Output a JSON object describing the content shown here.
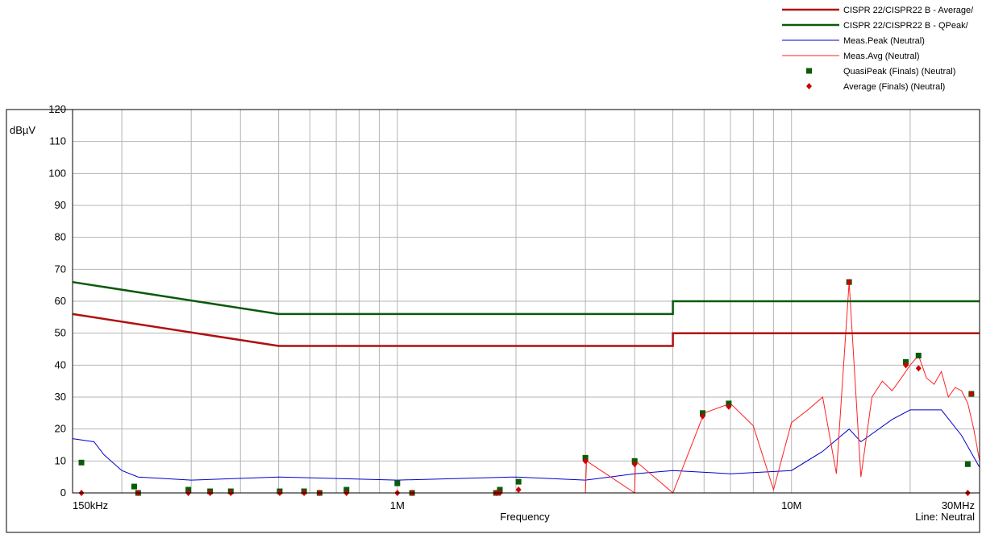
{
  "chart_data": {
    "type": "line",
    "title": "",
    "xlabel": "Frequency",
    "ylabel": "dBµV",
    "x_scale": "log",
    "x_unit": "Hz",
    "xlim": [
      150000,
      30000000
    ],
    "ylim": [
      0,
      120
    ],
    "y_ticks": [
      0,
      10,
      20,
      30,
      40,
      50,
      60,
      70,
      80,
      90,
      100,
      110,
      120
    ],
    "x_tick_labels": [
      {
        "x": 150000,
        "label": "150kHz"
      },
      {
        "x": 1000000,
        "label": "1M"
      },
      {
        "x": 10000000,
        "label": "10M"
      },
      {
        "x": 30000000,
        "label": "30MHz"
      }
    ],
    "footer_note": "Line: Neutral",
    "grid": true,
    "legend_position": "top-right",
    "series": [
      {
        "name": "CISPR 22/CISPR22 B - Average/",
        "style": "thick-line",
        "color": "#b01010",
        "x": [
          150000,
          500000,
          500000,
          5000000,
          5000000,
          30000000
        ],
        "y": [
          56,
          46,
          46,
          46,
          50,
          50
        ]
      },
      {
        "name": "CISPR 22/CISPR22 B - QPeak/",
        "style": "thick-line",
        "color": "#0a5a0a",
        "x": [
          150000,
          500000,
          500000,
          5000000,
          5000000,
          30000000
        ],
        "y": [
          66,
          56,
          56,
          56,
          60,
          60
        ]
      },
      {
        "name": "Meas.Peak (Neutral)",
        "style": "thin-line",
        "color": "#0000cc",
        "x": [
          150000,
          170000,
          180000,
          200000,
          220000,
          300000,
          500000,
          1000000,
          2000000,
          3000000,
          4000000,
          5000000,
          7000000,
          10000000,
          12000000,
          14000000,
          15000000,
          18000000,
          20000000,
          24000000,
          27000000,
          30000000
        ],
        "y": [
          17,
          16,
          12,
          7,
          5,
          4,
          5,
          4,
          5,
          4,
          6,
          7,
          6,
          7,
          13,
          20,
          16,
          23,
          26,
          26,
          18,
          8
        ]
      },
      {
        "name": "Meas.Avg (Neutral)",
        "style": "thin-line",
        "color": "#ff2020",
        "x": [
          150000,
          3000000,
          3020000,
          4000000,
          4020000,
          5000000,
          6000000,
          7000000,
          8000000,
          9000000,
          10000000,
          11000000,
          12000000,
          13000000,
          14000000,
          15000000,
          16000000,
          17000000,
          18000000,
          19000000,
          20000000,
          21000000,
          22000000,
          23000000,
          24000000,
          25000000,
          26000000,
          27000000,
          28000000,
          29000000,
          30000000
        ],
        "y": [
          0,
          0,
          10,
          0,
          10,
          0,
          25,
          28,
          21,
          1,
          22,
          26,
          30,
          6,
          66,
          5,
          30,
          35,
          32,
          36,
          40,
          43,
          36,
          34,
          38,
          30,
          33,
          32,
          28,
          20,
          10
        ]
      },
      {
        "name": "QuasiPeak (Finals) (Neutral)",
        "style": "square-markers",
        "color": "#0a5a0a",
        "x": [
          158000,
          215000,
          220000,
          295000,
          335000,
          378000,
          503000,
          580000,
          635000,
          743000,
          1000000,
          1090000,
          1780000,
          1820000,
          2030000,
          3000000,
          4000000,
          5950000,
          6930000,
          14000000,
          19500000,
          21000000,
          28000000,
          28600000
        ],
        "y": [
          9.5,
          2,
          0,
          1,
          0.5,
          0.5,
          0.5,
          0.5,
          0,
          1,
          3,
          0,
          0,
          1,
          3.5,
          11,
          10,
          25,
          28,
          66,
          41,
          43,
          9,
          31
        ]
      },
      {
        "name": "Average (Finals) (Neutral)",
        "style": "diamond-markers",
        "color": "#cc0000",
        "x": [
          158000,
          220000,
          295000,
          335000,
          378000,
          503000,
          580000,
          635000,
          743000,
          1000000,
          1090000,
          1780000,
          1820000,
          2030000,
          3000000,
          4000000,
          5950000,
          6930000,
          14000000,
          19500000,
          21000000,
          28000000,
          28600000
        ],
        "y": [
          0,
          0,
          0,
          0,
          0,
          0,
          0,
          0,
          0,
          0,
          0,
          0,
          0,
          1,
          10,
          9,
          24,
          27,
          66,
          40,
          39,
          0,
          31
        ]
      }
    ]
  }
}
